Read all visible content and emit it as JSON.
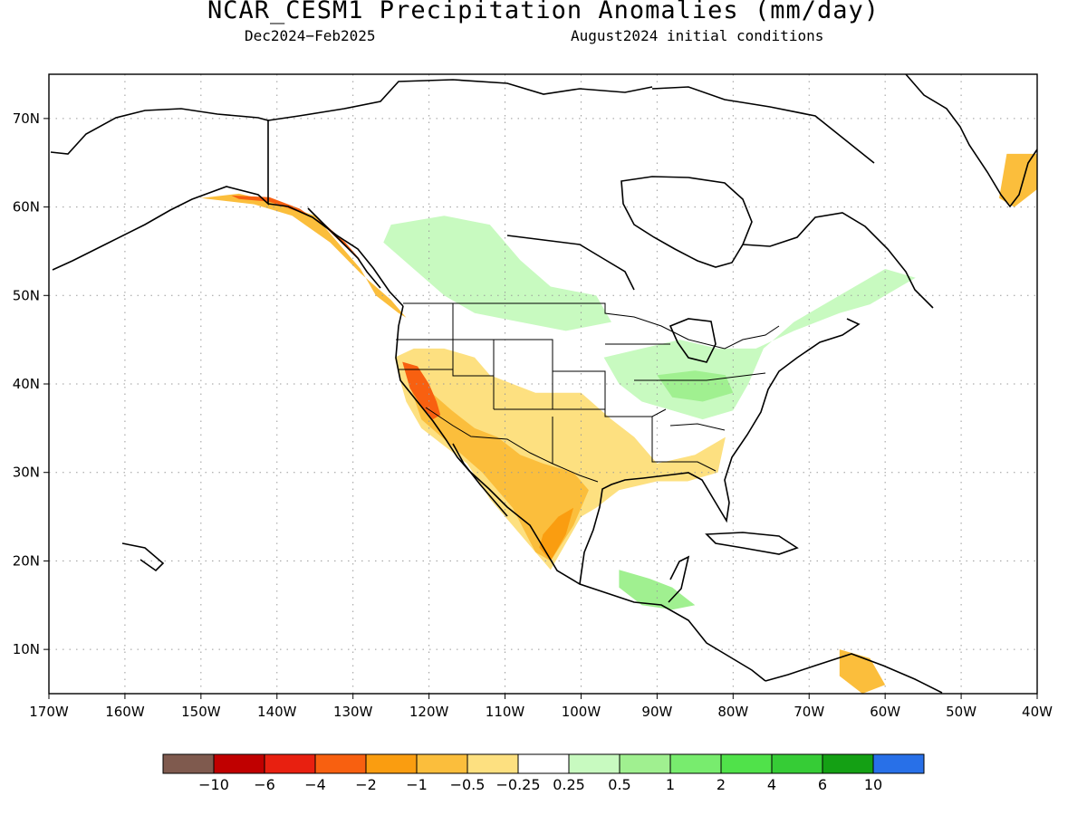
{
  "header": {
    "title": "NCAR_CESM1 Precipitation Anomalies (mm/day)",
    "period": "Dec2024−Feb2025",
    "init": "August2024 initial conditions"
  },
  "map": {
    "lon_range": [
      -170,
      -40
    ],
    "lat_range": [
      5,
      75
    ],
    "lon_ticks": [
      {
        "v": -170,
        "label": "170W"
      },
      {
        "v": -160,
        "label": "160W"
      },
      {
        "v": -150,
        "label": "150W"
      },
      {
        "v": -140,
        "label": "140W"
      },
      {
        "v": -130,
        "label": "130W"
      },
      {
        "v": -120,
        "label": "120W"
      },
      {
        "v": -110,
        "label": "110W"
      },
      {
        "v": -100,
        "label": "100W"
      },
      {
        "v": -90,
        "label": "90W"
      },
      {
        "v": -80,
        "label": "80W"
      },
      {
        "v": -70,
        "label": "70W"
      },
      {
        "v": -60,
        "label": "60W"
      },
      {
        "v": -50,
        "label": "50W"
      },
      {
        "v": -40,
        "label": "40W"
      }
    ],
    "lat_ticks": [
      {
        "v": 10,
        "label": "10N"
      },
      {
        "v": 20,
        "label": "20N"
      },
      {
        "v": 30,
        "label": "30N"
      },
      {
        "v": 40,
        "label": "40N"
      },
      {
        "v": 50,
        "label": "50N"
      },
      {
        "v": 60,
        "label": "60N"
      },
      {
        "v": 70,
        "label": "70N"
      }
    ]
  },
  "colorbar": {
    "colors": [
      "#7f5a4e",
      "#c00000",
      "#e82010",
      "#f86010",
      "#fa9d10",
      "#fbbe3c",
      "#fde080",
      "#ffffff",
      "#c8fac0",
      "#a0f090",
      "#78ec6e",
      "#50e24a",
      "#36cc36",
      "#14a014",
      "#2870e8"
    ],
    "labels": [
      "−10",
      "−6",
      "−4",
      "−2",
      "−1",
      "−0.5",
      "−0.25",
      "0.25",
      "0.5",
      "1",
      "2",
      "4",
      "6",
      "10"
    ]
  },
  "anomaly_regions": [
    {
      "name": "alaska-gulf-dry",
      "color": "#fbbe3c",
      "pts": [
        [
          -150,
          61
        ],
        [
          -145,
          61.5
        ],
        [
          -140,
          60.5
        ],
        [
          -135,
          59
        ],
        [
          -132,
          56
        ],
        [
          -129,
          53
        ],
        [
          -127,
          50
        ],
        [
          -124,
          48
        ],
        [
          -123,
          47.5
        ],
        [
          -125,
          49.5
        ],
        [
          -129,
          52.5
        ],
        [
          -133,
          56
        ],
        [
          -138,
          59
        ],
        [
          -143,
          60.3
        ],
        [
          -148,
          60.8
        ]
      ]
    },
    {
      "name": "alaska-gulf-core",
      "color": "#f86010",
      "pts": [
        [
          -146,
          61.3
        ],
        [
          -141,
          61.1
        ],
        [
          -137,
          59.8
        ],
        [
          -134,
          58
        ],
        [
          -131,
          55.5
        ],
        [
          -129,
          54
        ],
        [
          -131,
          56
        ],
        [
          -134,
          58.3
        ],
        [
          -137,
          59.4
        ],
        [
          -141,
          60.6
        ],
        [
          -145,
          60.9
        ]
      ]
    },
    {
      "name": "west-dry",
      "color": "#fde080",
      "pts": [
        [
          -124.5,
          43
        ],
        [
          -122,
          44
        ],
        [
          -118,
          44
        ],
        [
          -114,
          43
        ],
        [
          -112,
          41
        ],
        [
          -109,
          40
        ],
        [
          -106,
          39
        ],
        [
          -100,
          39
        ],
        [
          -96,
          36
        ],
        [
          -93,
          34
        ],
        [
          -90,
          31
        ],
        [
          -85,
          32
        ],
        [
          -81,
          34
        ],
        [
          -82,
          30
        ],
        [
          -86,
          29
        ],
        [
          -90,
          29
        ],
        [
          -95,
          28
        ],
        [
          -98,
          26
        ],
        [
          -100,
          25
        ],
        [
          -102,
          22
        ],
        [
          -104,
          19
        ],
        [
          -106,
          21
        ],
        [
          -109,
          24
        ],
        [
          -112,
          27
        ],
        [
          -115,
          31
        ],
        [
          -118,
          33
        ],
        [
          -121,
          35
        ],
        [
          -123,
          38
        ],
        [
          -124,
          41
        ]
      ]
    },
    {
      "name": "southwest-drier",
      "color": "#fbbe3c",
      "pts": [
        [
          -123,
          41
        ],
        [
          -121,
          40
        ],
        [
          -117,
          37
        ],
        [
          -114,
          35
        ],
        [
          -111,
          34
        ],
        [
          -108,
          32
        ],
        [
          -105,
          31
        ],
        [
          -101,
          30
        ],
        [
          -99,
          28
        ],
        [
          -101,
          24
        ],
        [
          -104,
          20
        ],
        [
          -106,
          21
        ],
        [
          -109,
          26
        ],
        [
          -113,
          30
        ],
        [
          -117,
          33
        ],
        [
          -121,
          36
        ]
      ]
    },
    {
      "name": "california-core",
      "color": "#f86010",
      "pts": [
        [
          -123.5,
          42.5
        ],
        [
          -121.5,
          42
        ],
        [
          -120,
          40
        ],
        [
          -119,
          38
        ],
        [
          -118.5,
          36.5
        ],
        [
          -119.5,
          36
        ],
        [
          -121,
          37.5
        ],
        [
          -122.5,
          39.5
        ]
      ]
    },
    {
      "name": "mexico-drier",
      "color": "#fa9d10",
      "pts": [
        [
          -105.5,
          21.5
        ],
        [
          -104,
          20
        ],
        [
          -102,
          23
        ],
        [
          -101,
          26
        ],
        [
          -103,
          25
        ],
        [
          -105,
          23
        ]
      ]
    },
    {
      "name": "canada-wet",
      "color": "#c8fac0",
      "pts": [
        [
          -125,
          58
        ],
        [
          -118,
          59
        ],
        [
          -112,
          58
        ],
        [
          -108,
          54
        ],
        [
          -104,
          51
        ],
        [
          -98,
          50
        ],
        [
          -96,
          47
        ],
        [
          -102,
          46
        ],
        [
          -108,
          47
        ],
        [
          -114,
          48
        ],
        [
          -118,
          50
        ],
        [
          -122,
          53
        ],
        [
          -126,
          56
        ]
      ]
    },
    {
      "name": "east-wet",
      "color": "#c8fac0",
      "pts": [
        [
          -97,
          43
        ],
        [
          -92,
          44
        ],
        [
          -87,
          45
        ],
        [
          -82,
          44
        ],
        [
          -77,
          44
        ],
        [
          -72,
          46
        ],
        [
          -66,
          48
        ],
        [
          -62,
          49
        ],
        [
          -58,
          51
        ],
        [
          -56,
          52
        ],
        [
          -60,
          53
        ],
        [
          -66,
          50
        ],
        [
          -72,
          47
        ],
        [
          -76,
          44
        ],
        [
          -78,
          40
        ],
        [
          -80,
          37
        ],
        [
          -84,
          36
        ],
        [
          -88,
          37
        ],
        [
          -92,
          38
        ],
        [
          -95,
          40
        ]
      ]
    },
    {
      "name": "ohio-valley-wet",
      "color": "#a0f090",
      "pts": [
        [
          -90,
          41
        ],
        [
          -85,
          41.5
        ],
        [
          -81,
          41
        ],
        [
          -80,
          39
        ],
        [
          -84,
          38
        ],
        [
          -88,
          38.5
        ]
      ]
    },
    {
      "name": "central-america-wet",
      "color": "#a0f090",
      "pts": [
        [
          -95,
          19
        ],
        [
          -91,
          18
        ],
        [
          -88,
          17
        ],
        [
          -85,
          15
        ],
        [
          -88,
          14.5
        ],
        [
          -92,
          15
        ],
        [
          -95,
          17
        ]
      ]
    },
    {
      "name": "greenland-dry",
      "color": "#fbbe3c",
      "pts": [
        [
          -44,
          66
        ],
        [
          -40,
          66
        ],
        [
          -40,
          62
        ],
        [
          -43,
          60
        ],
        [
          -45,
          61
        ]
      ]
    },
    {
      "name": "venezuela-dry",
      "color": "#fbbe3c",
      "pts": [
        [
          -66,
          10
        ],
        [
          -62,
          9
        ],
        [
          -60,
          6
        ],
        [
          -63,
          5
        ],
        [
          -66,
          7
        ]
      ]
    }
  ]
}
